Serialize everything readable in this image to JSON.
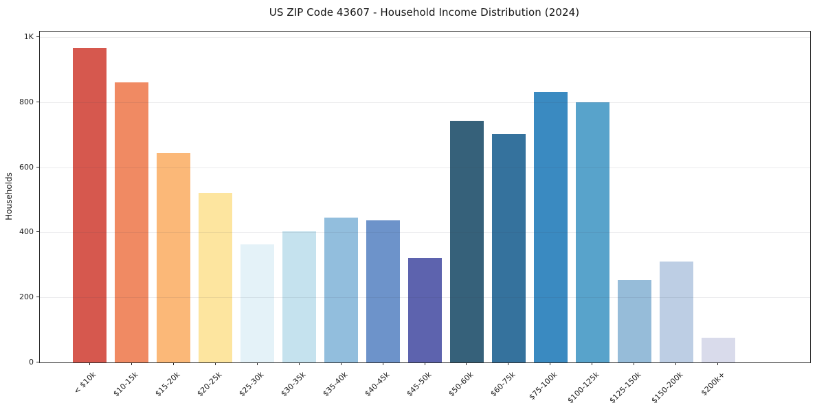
{
  "chart_data": {
    "type": "bar",
    "title": "US ZIP Code 43607 - Household Income Distribution (2024)",
    "xlabel": "",
    "ylabel": "Households",
    "categories": [
      "< $10k",
      "$10-15k",
      "$15-20k",
      "$20-25k",
      "$25-30k",
      "$30-35k",
      "$35-40k",
      "$40-45k",
      "$45-50k",
      "$50-60k",
      "$60-75k",
      "$75-100k",
      "$100-125k",
      "$125-150k",
      "$150-200k",
      "$200k+"
    ],
    "values": [
      967,
      860,
      643,
      522,
      363,
      403,
      445,
      437,
      321,
      743,
      702,
      831,
      800,
      254,
      311,
      76
    ],
    "bar_colors": [
      "#d6584e",
      "#f08a63",
      "#fbb878",
      "#fde59f",
      "#e4f2f8",
      "#c5e2ee",
      "#92bedd",
      "#6d93ca",
      "#5d63ae",
      "#36617a",
      "#35729d",
      "#3a8ac1",
      "#58a3cb",
      "#96bcd9",
      "#bdcee4",
      "#d9dbeb"
    ],
    "yticks": [
      {
        "value": 0,
        "label": "0"
      },
      {
        "value": 200,
        "label": "200"
      },
      {
        "value": 400,
        "label": "400"
      },
      {
        "value": 600,
        "label": "600"
      },
      {
        "value": 800,
        "label": "800"
      },
      {
        "value": 1000,
        "label": "1K"
      }
    ],
    "ylim": [
      0,
      1017
    ],
    "grid": "horizontal",
    "grid_color": "#e9e9ef",
    "background_color": "#ffffff",
    "axis_color": "#2a2a2a",
    "legend": "none"
  }
}
